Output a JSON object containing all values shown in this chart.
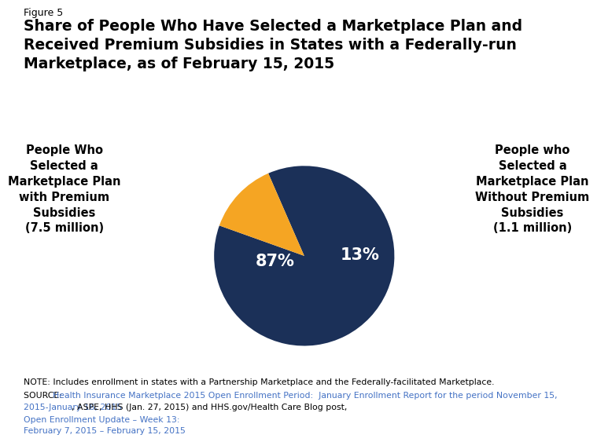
{
  "figure_label": "Figure 5",
  "title_line1": "Share of People Who Have Selected a Marketplace Plan and",
  "title_line2": "Received Premium Subsidies in States with a Federally-run",
  "title_line3": "Marketplace, as of February 15, 2015",
  "slices": [
    87,
    13
  ],
  "colors": [
    "#1b3058",
    "#f5a523"
  ],
  "labels_pct": [
    "87%",
    "13%"
  ],
  "left_label": "People Who\nSelected a\nMarketplace Plan\nwith Premium\nSubsidies\n(7.5 million)",
  "right_label": "People who\nSelected a\nMarketplace Plan\nWithout Premium\nSubsidies\n(1.1 million)",
  "note_line1": "NOTE: Includes enrollment in states with a Partnership Marketplace and the Federally-facilitated Marketplace.",
  "source_plain": "SOURCE: ",
  "source_link1": "Health Insurance Marketplace 2015 Open Enrollment Period:  January Enrollment Report for the period November 15,",
  "source_link1b": "2015-January 16, 2015",
  "source_plain2": ", ASPE, HHS (Jan. 27, 2015) and HHS.gov/Health Care Blog post, ",
  "source_link2": "Open Enrollment Update – Week 13:",
  "source_link2b": "February 7, 2015 – February 15, 2015",
  "dark_blue": "#1b3058",
  "orange": "#f5a523",
  "link_color": "#4472c4",
  "background_color": "#ffffff",
  "start_angle": 113.5,
  "pct_text_color": "#ffffff"
}
